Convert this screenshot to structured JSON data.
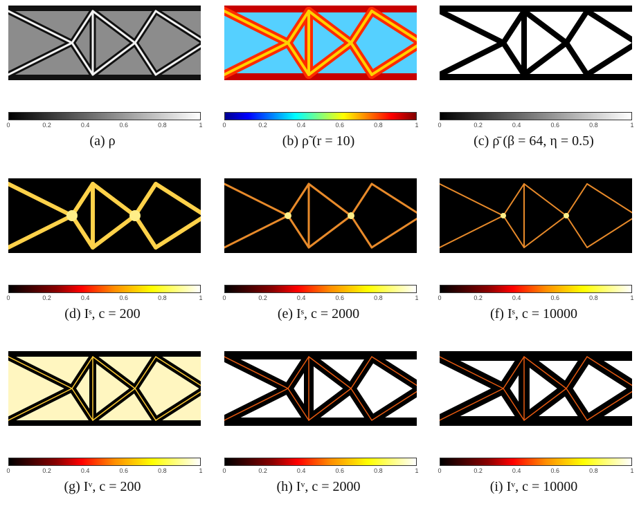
{
  "ticks": [
    "0",
    "0.2",
    "0.4",
    "0.6",
    "0.8",
    "1"
  ],
  "panels": [
    {
      "caption": "(a) ρ",
      "colormap": "gray",
      "style": "density"
    },
    {
      "caption": "(b) ρ̃ (r = 10)",
      "colormap": "jet",
      "style": "filtered"
    },
    {
      "caption": "(c) ρ̄ (β = 64, η = 0.5)",
      "colormap": "gray",
      "style": "projected"
    },
    {
      "caption": "(d) Iˢ, c = 200",
      "colormap": "hot",
      "style": "solid-wide"
    },
    {
      "caption": "(e) Iˢ, c = 2000",
      "colormap": "hot",
      "style": "solid-mid"
    },
    {
      "caption": "(f) Iˢ, c = 10000",
      "colormap": "hot",
      "style": "solid-thin"
    },
    {
      "caption": "(g) Iᵛ, c = 200",
      "colormap": "hot",
      "style": "void-wide"
    },
    {
      "caption": "(h) Iᵛ, c = 2000",
      "colormap": "hot",
      "style": "void-mid"
    },
    {
      "caption": "(i) Iᵛ, c = 10000",
      "colormap": "hot",
      "style": "void-thin"
    }
  ]
}
